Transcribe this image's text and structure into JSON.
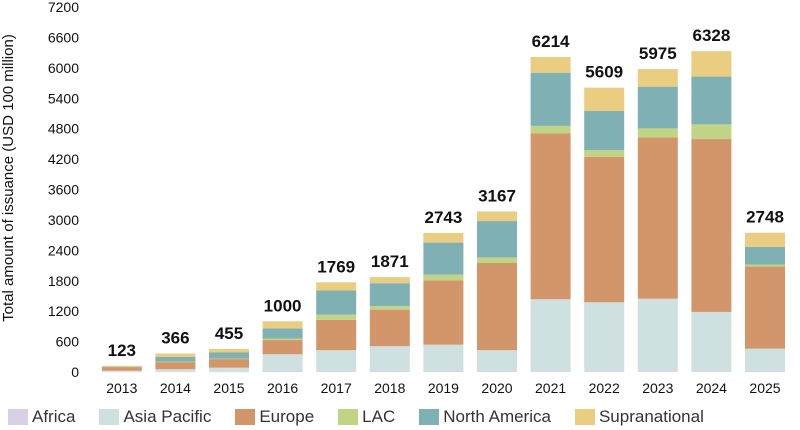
{
  "chart_data": {
    "type": "bar",
    "stacked": true,
    "ylabel": "Total amount of issuance (USD 100 million)",
    "ylim": [
      0,
      7200
    ],
    "yticks": [
      0,
      600,
      1200,
      1800,
      2400,
      3000,
      3600,
      4200,
      4800,
      5400,
      6000,
      6600,
      7200
    ],
    "categories": [
      "2013",
      "2014",
      "2015",
      "2016",
      "2017",
      "2018",
      "2019",
      "2020",
      "2021",
      "2022",
      "2023",
      "2024",
      "2025"
    ],
    "totals": [
      "123",
      "366",
      "455",
      "1000",
      "1769",
      "1871",
      "2743",
      "3167",
      "6214",
      "5609",
      "5975",
      "6328",
      "2748"
    ],
    "series": [
      {
        "name": "Africa",
        "color": "#d9cfe6",
        "values": [
          5,
          5,
          5,
          10,
          10,
          10,
          10,
          10,
          15,
          15,
          15,
          15,
          10
        ]
      },
      {
        "name": "Asia Pacific",
        "color": "#cfe0e0",
        "values": [
          20,
          50,
          80,
          340,
          420,
          500,
          530,
          420,
          1420,
          1360,
          1430,
          1170,
          450
        ]
      },
      {
        "name": "Europe",
        "color": "#d3956a",
        "values": [
          70,
          140,
          170,
          280,
          600,
          720,
          1270,
          1720,
          3270,
          2870,
          3180,
          3410,
          1620
        ]
      },
      {
        "name": "LAC",
        "color": "#bfd484",
        "values": [
          0,
          10,
          10,
          30,
          100,
          70,
          110,
          110,
          150,
          130,
          180,
          290,
          40
        ]
      },
      {
        "name": "North America",
        "color": "#7fb0b4",
        "values": [
          8,
          91,
          120,
          200,
          479,
          451,
          633,
          717,
          1049,
          774,
          824,
          943,
          348
        ]
      },
      {
        "name": "Supranational",
        "color": "#ebcd82",
        "values": [
          20,
          70,
          70,
          140,
          160,
          120,
          190,
          190,
          310,
          460,
          346,
          500,
          280
        ]
      }
    ]
  }
}
